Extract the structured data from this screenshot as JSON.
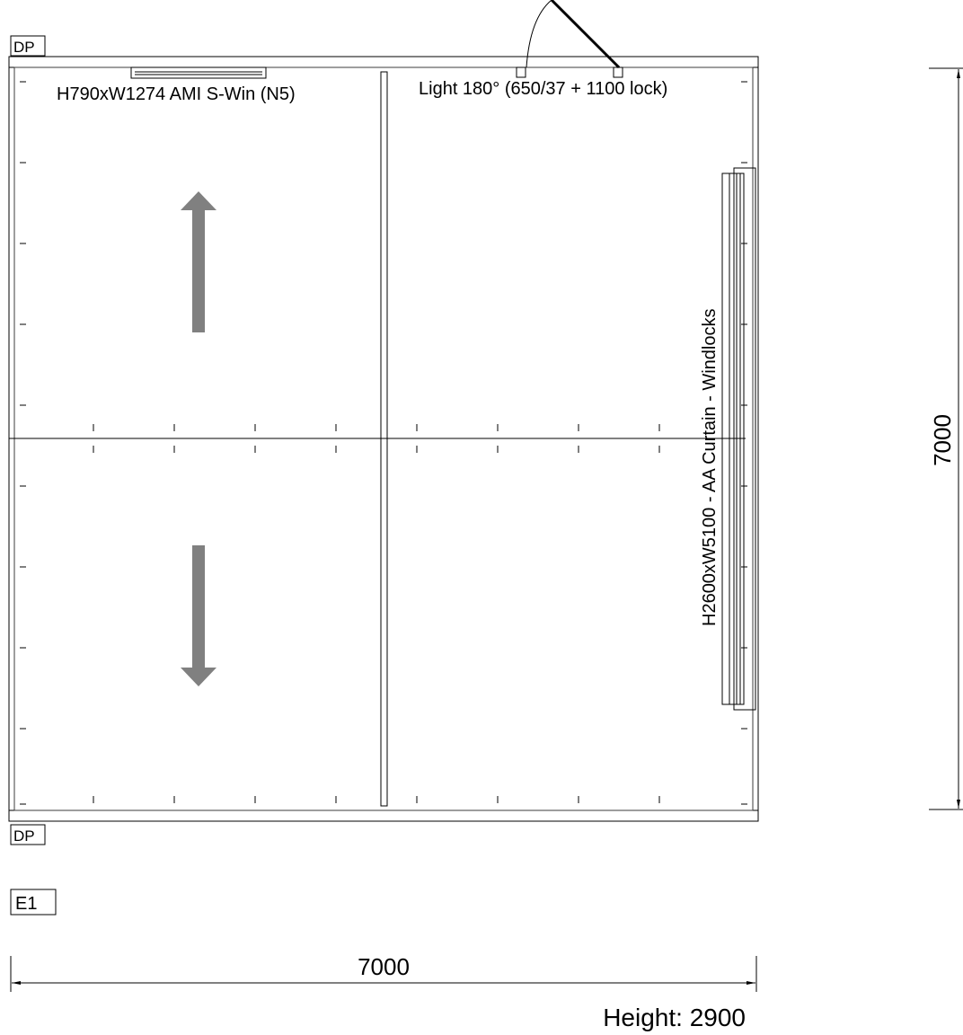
{
  "tags": {
    "top": "DP",
    "bottom": "DP",
    "elevation": "E1"
  },
  "labels": {
    "window": "H790xW1274 AMI S-Win (N5)",
    "door": "Light 180° (650/37 + 1100 lock)",
    "curtain": "H2600xW5100 - AA Curtain - Windlocks"
  },
  "dimensions": {
    "width": "7000",
    "depth": "7000",
    "height": "Height: 2900"
  },
  "arrows": {
    "up_icon": "arrow-up-icon",
    "down_icon": "arrow-down-icon",
    "color": "#808080"
  }
}
